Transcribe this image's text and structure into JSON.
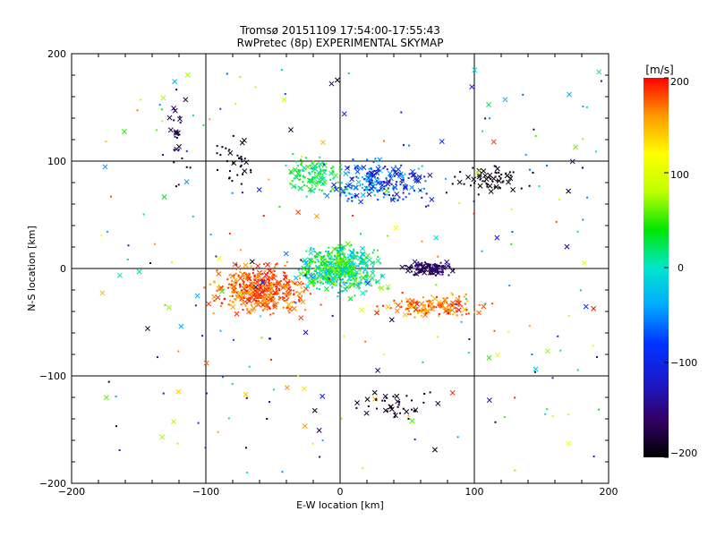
{
  "chart_data": {
    "type": "scatter",
    "title": "Tromsø 20151109 17:54:00-17:55:43",
    "subtitle": "RwPretec (8p) EXPERIMENTAL SKYMAP",
    "xlabel": "E-W location [km]",
    "ylabel": "N-S location [km]",
    "xlim": [
      -200,
      200
    ],
    "ylim": [
      -200,
      200
    ],
    "xticks": [
      "−200",
      "−100",
      "0",
      "100",
      "200"
    ],
    "yticks": [
      "−200",
      "−100",
      "0",
      "100",
      "200"
    ],
    "grid": true,
    "colorbar": {
      "label": "[m/s]",
      "range": [
        -200,
        200
      ],
      "ticks": [
        "−200",
        "−100",
        "0",
        "100",
        "200"
      ],
      "colormap": "rainbow",
      "stops": [
        "#000000",
        "#330066",
        "#1a1acc",
        "#0033ff",
        "#00aaff",
        "#00e6cc",
        "#00e600",
        "#bfff00",
        "#ffff00",
        "#ff9900",
        "#ff0000"
      ]
    },
    "markers": [
      "×",
      "·"
    ],
    "clusters": [
      {
        "x": [
          -130,
          -110
        ],
        "y": [
          60,
          180
        ],
        "v": [
          -200,
          -150
        ],
        "n": 25
      },
      {
        "x": [
          -100,
          -55
        ],
        "y": [
          70,
          130
        ],
        "v": [
          -200,
          -180
        ],
        "n": 35
      },
      {
        "x": [
          -50,
          10
        ],
        "y": [
          60,
          110
        ],
        "v": [
          0,
          60
        ],
        "n": 120
      },
      {
        "x": [
          -20,
          80
        ],
        "y": [
          50,
          110
        ],
        "v": [
          -140,
          -10
        ],
        "n": 220
      },
      {
        "x": [
          75,
          150
        ],
        "y": [
          65,
          100
        ],
        "v": [
          -200,
          -190
        ],
        "n": 60
      },
      {
        "x": [
          -105,
          -10
        ],
        "y": [
          -50,
          10
        ],
        "v": [
          150,
          200
        ],
        "n": 420
      },
      {
        "x": [
          -40,
          40
        ],
        "y": [
          -30,
          30
        ],
        "v": [
          -40,
          80
        ],
        "n": 520
      },
      {
        "x": [
          40,
          90
        ],
        "y": [
          -10,
          10
        ],
        "v": [
          -180,
          -140
        ],
        "n": 110
      },
      {
        "x": [
          20,
          120
        ],
        "y": [
          -50,
          -20
        ],
        "v": [
          140,
          200
        ],
        "n": 150
      },
      {
        "x": [
          -180,
          195
        ],
        "y": [
          -190,
          185
        ],
        "v": [
          -200,
          200
        ],
        "n": 260
      },
      {
        "x": [
          -10,
          90
        ],
        "y": [
          -150,
          -100
        ],
        "v": [
          -200,
          -170
        ],
        "n": 40
      }
    ]
  }
}
